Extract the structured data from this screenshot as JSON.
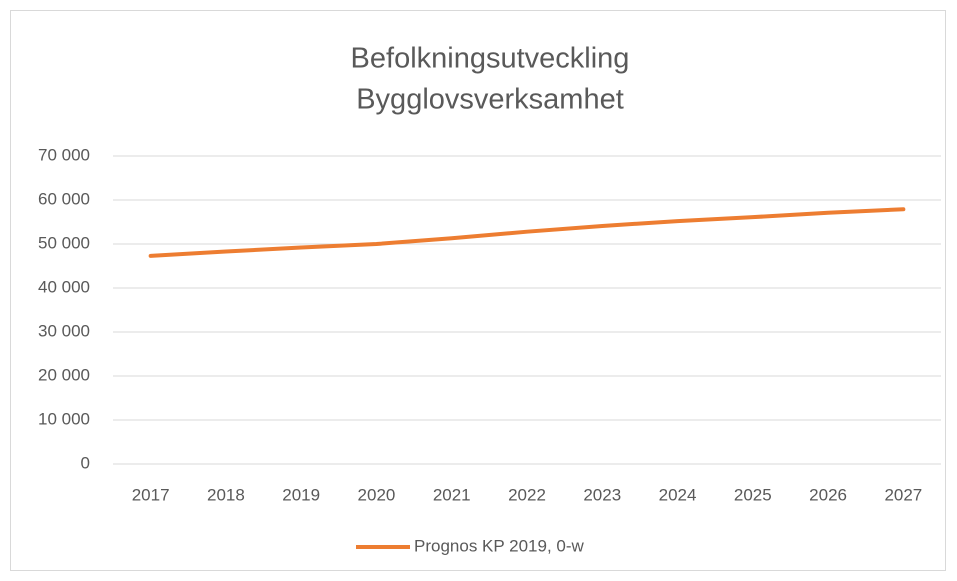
{
  "chart_data": {
    "type": "line",
    "title": [
      "Befolkningsutveckling",
      "Bygglovsverksamhet"
    ],
    "categories": [
      "2017",
      "2018",
      "2019",
      "2020",
      "2021",
      "2022",
      "2023",
      "2024",
      "2025",
      "2026",
      "2027"
    ],
    "series": [
      {
        "name": "Prognos KP 2019, 0-w",
        "color": "#ed7d31",
        "values": [
          47300,
          48300,
          49200,
          50000,
          51300,
          52800,
          54100,
          55200,
          56100,
          57100,
          57900
        ]
      }
    ],
    "ylim": [
      0,
      70000
    ],
    "yticks": [
      0,
      {
        "value": 10000,
        "label": "10 000"
      },
      {
        "value": 20000,
        "label": "20 000"
      },
      {
        "value": 30000,
        "label": "30 000"
      },
      {
        "value": 40000,
        "label": "40 000"
      },
      {
        "value": 50000,
        "label": "50 000"
      },
      {
        "value": 60000,
        "label": "60 000"
      },
      {
        "value": 70000,
        "label": "70 000"
      }
    ],
    "grid": true,
    "legend": "bottom"
  }
}
